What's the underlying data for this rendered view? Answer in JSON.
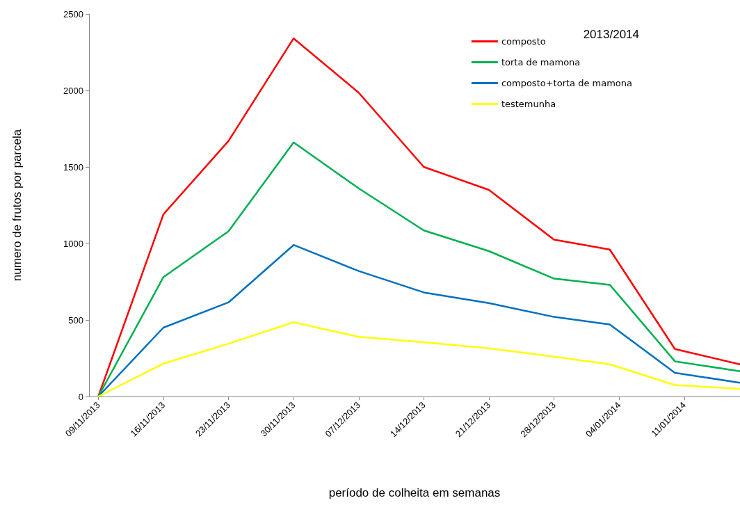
{
  "chart_data": {
    "type": "line",
    "title": "2013/2014",
    "xlabel": "período de colheita em semanas",
    "ylabel": "numero de frutos por parcela",
    "x": [
      "2013-11-09",
      "2013-11-16",
      "2013-11-23",
      "2013-11-30",
      "2013-12-07",
      "2013-12-14",
      "2013-12-21",
      "2013-12-28",
      "2014-01-03",
      "2014-01-10",
      "2014-01-17"
    ],
    "series": [
      {
        "name": "composto",
        "color": "#ff0000",
        "values": [
          0,
          1190,
          1670,
          2340,
          1985,
          1500,
          1350,
          1025,
          960,
          310,
          210
        ]
      },
      {
        "name": "torta de mamona",
        "color": "#00b050",
        "values": [
          0,
          780,
          1080,
          1660,
          1360,
          1085,
          950,
          770,
          730,
          230,
          165
        ]
      },
      {
        "name": "composto+torta de mamona",
        "color": "#0070c0",
        "values": [
          0,
          450,
          615,
          990,
          820,
          680,
          610,
          520,
          470,
          155,
          90
        ]
      },
      {
        "name": "testemunha",
        "color": "#ffff00",
        "values": [
          0,
          215,
          345,
          485,
          390,
          355,
          315,
          260,
          210,
          75,
          50
        ]
      }
    ],
    "xlim": [
      "2013-11-08",
      "2014-01-17"
    ],
    "xticks": [
      {
        "value": "2013-11-09",
        "label": "09/11/2013"
      },
      {
        "value": "2013-11-16",
        "label": "16/11/2013"
      },
      {
        "value": "2013-11-23",
        "label": "23/11/2013"
      },
      {
        "value": "2013-11-30",
        "label": "30/11/2013"
      },
      {
        "value": "2013-12-07",
        "label": "07/12/2013"
      },
      {
        "value": "2013-12-14",
        "label": "14/12/2013"
      },
      {
        "value": "2013-12-21",
        "label": "21/12/2013"
      },
      {
        "value": "2013-12-28",
        "label": "28/12/2013"
      },
      {
        "value": "2014-01-04",
        "label": "04/01/2014"
      },
      {
        "value": "2014-01-11",
        "label": "11/01/2014"
      }
    ],
    "ylim": [
      0,
      2500
    ],
    "yticks": [
      0,
      500,
      1000,
      1500,
      2000,
      2500
    ],
    "grid": false,
    "legend": "top right",
    "marker": "none",
    "line_style": "solid"
  }
}
